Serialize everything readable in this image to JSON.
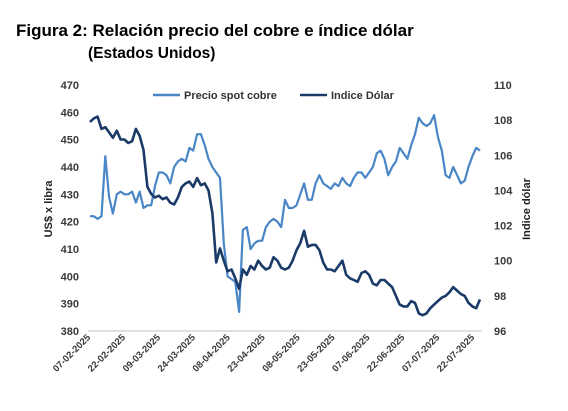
{
  "chart_data": {
    "type": "line",
    "title": "Figura 2: Relación precio del cobre e índice dólar",
    "subtitle": "(Estados Unidos)",
    "ylabel_left": "US$ x libra",
    "ylabel_right": "Indice dólar",
    "ylim_left": [
      380,
      470
    ],
    "yticks_left": [
      380,
      390,
      400,
      410,
      420,
      430,
      440,
      450,
      460,
      470
    ],
    "ylim_right": [
      96,
      110
    ],
    "yticks_right": [
      96,
      98,
      100,
      102,
      104,
      106,
      108,
      110
    ],
    "x_tick_labels": [
      "07-02-2025",
      "22-02-2025",
      "09-03-2025",
      "24-03-2025",
      "08-04-2025",
      "23-04-2025",
      "08-05-2025",
      "23-05-2025",
      "07-06-2025",
      "22-06-2025",
      "07-07-2025",
      "22-07-2025"
    ],
    "legend_position": "top",
    "grid": false,
    "series": [
      {
        "name": "Precio spot cobre",
        "axis": "left",
        "color": "#4a86c6",
        "values": [
          422,
          422,
          421,
          422,
          444,
          429,
          423,
          430,
          431,
          430,
          430,
          431,
          427,
          431,
          425,
          426,
          426,
          433,
          438,
          438,
          437,
          434,
          440,
          442,
          443,
          442,
          447,
          446,
          452,
          452,
          448,
          443,
          440,
          438,
          436,
          412,
          400,
          399,
          398,
          387,
          417,
          418,
          410,
          412,
          413,
          413,
          418,
          420,
          421,
          420,
          418,
          428,
          425,
          425,
          426,
          430,
          434,
          428,
          428,
          434,
          437,
          434,
          433,
          432,
          434,
          433,
          436,
          434,
          433,
          436,
          438,
          438,
          436,
          438,
          440,
          445,
          446,
          443,
          437,
          440,
          442,
          447,
          445,
          443,
          448,
          452,
          458,
          456,
          455,
          456,
          459,
          451,
          446,
          437,
          436,
          440,
          437,
          434,
          435,
          440,
          444,
          447,
          446
        ]
      },
      {
        "name": "Indice Dólar",
        "axis": "right",
        "color": "#1a3a68",
        "values": [
          107.9,
          108.1,
          108.2,
          107.5,
          107.6,
          107.3,
          107.0,
          107.4,
          106.9,
          106.9,
          106.7,
          106.8,
          107.5,
          107.1,
          106.3,
          104.2,
          103.8,
          103.6,
          103.7,
          103.5,
          103.6,
          103.3,
          103.2,
          103.6,
          104.2,
          104.4,
          104.5,
          104.2,
          104.7,
          104.3,
          104.4,
          104.0,
          102.7,
          99.9,
          100.7,
          100.0,
          99.4,
          99.5,
          99.0,
          98.4,
          99.5,
          99.2,
          99.7,
          99.5,
          100.0,
          99.7,
          99.5,
          99.6,
          100.2,
          100.0,
          99.6,
          99.5,
          99.6,
          100.0,
          100.6,
          101.0,
          101.7,
          100.8,
          100.9,
          100.9,
          100.6,
          99.9,
          99.5,
          99.5,
          99.4,
          99.7,
          100.0,
          99.2,
          99.0,
          98.9,
          98.8,
          99.3,
          99.4,
          99.2,
          98.7,
          98.6,
          98.9,
          98.9,
          98.7,
          98.5,
          98.0,
          97.5,
          97.4,
          97.4,
          97.7,
          97.6,
          97.0,
          96.9,
          97.0,
          97.3,
          97.5,
          97.7,
          97.9,
          98.0,
          98.2,
          98.5,
          98.3,
          98.1,
          98.0,
          97.6,
          97.4,
          97.3,
          97.8
        ]
      }
    ]
  }
}
